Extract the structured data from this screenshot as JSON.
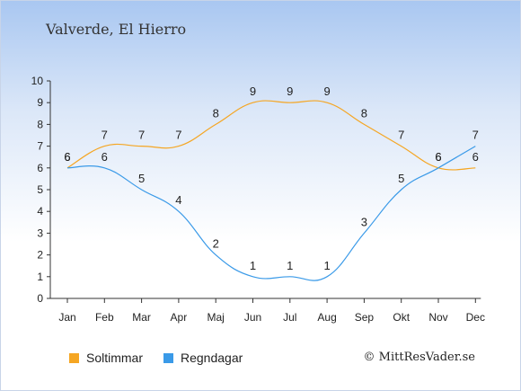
{
  "title": "Valverde, El Hierro",
  "credit": "© MittResVader.se",
  "chart_data": {
    "type": "line",
    "categories": [
      "Jan",
      "Feb",
      "Mar",
      "Apr",
      "Maj",
      "Jun",
      "Jul",
      "Aug",
      "Sep",
      "Okt",
      "Nov",
      "Dec"
    ],
    "ylim": [
      0,
      10
    ],
    "yticks": [
      0,
      1,
      2,
      3,
      4,
      5,
      6,
      7,
      8,
      9,
      10
    ],
    "grid": false,
    "legend_position": "bottom-left",
    "series": [
      {
        "name": "Soltimmar",
        "color": "#f5a623",
        "values": [
          6,
          7,
          7,
          7,
          8,
          9,
          9,
          9,
          8,
          7,
          6,
          6
        ]
      },
      {
        "name": "Regndagar",
        "color": "#3a9ae8",
        "values": [
          6,
          6,
          5,
          4,
          2,
          1,
          1,
          1,
          3,
          5,
          6,
          7
        ]
      }
    ]
  }
}
